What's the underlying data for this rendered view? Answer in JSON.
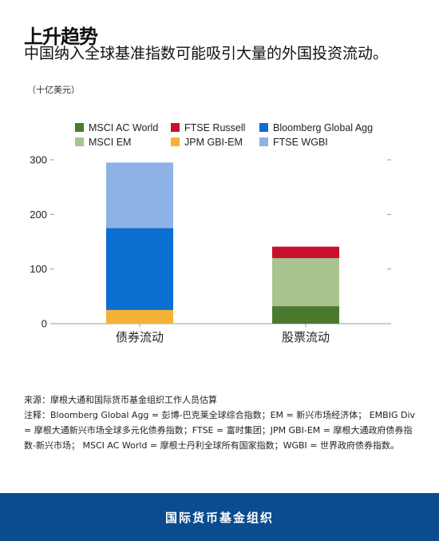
{
  "header": {
    "title": "上升趋势",
    "subtitle": "中国纳入全球基准指数可能吸引大量的外国投资流动。",
    "unit": "（十亿美元）"
  },
  "chart_data": {
    "type": "bar",
    "stacked": true,
    "categories": [
      "债券流动",
      "股票流动"
    ],
    "ylim": [
      0,
      300
    ],
    "yticks": [
      0,
      100,
      200,
      300
    ],
    "grid": false,
    "legend_position": "top",
    "series": [
      {
        "name": "MSCI AC World",
        "color": "#4a7a2e",
        "values": [
          0,
          32
        ]
      },
      {
        "name": "MSCI EM",
        "color": "#a9c28e",
        "values": [
          0,
          88
        ]
      },
      {
        "name": "FTSE Russell",
        "color": "#c8102e",
        "values": [
          0,
          21
        ]
      },
      {
        "name": "JPM GBI-EM",
        "color": "#f5b335",
        "values": [
          25,
          0
        ]
      },
      {
        "name": "Bloomberg Global Agg",
        "color": "#0a6fd1",
        "values": [
          150,
          0
        ]
      },
      {
        "name": "FTSE WGBI",
        "color": "#8db3e6",
        "values": [
          120,
          0
        ]
      }
    ]
  },
  "notes": {
    "source": "来源：摩根大通和国际货币基金组织工作人员估算",
    "note": "注释：Bloomberg Global Agg = 彭博-巴克莱全球综合指数；EM = 新兴市场经济体； EMBIG Div = 摩根大通新兴市场全球多元化债券指数；FTSE = 富时集团；JPM GBI-EM = 摩根大通政府债券指数-新兴市场； MSCI AC World = 摩根士丹利全球所有国家指数；WGBI = 世界政府债券指数。"
  },
  "footer": {
    "org": "国际货币基金组织"
  }
}
